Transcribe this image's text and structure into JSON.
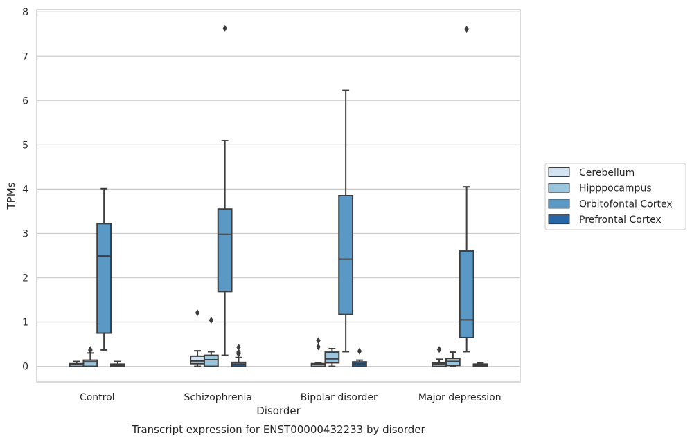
{
  "chart_data": {
    "type": "box",
    "title": "",
    "caption": "Transcript expression for ENST00000432233 by disorder",
    "xlabel": "Disorder",
    "ylabel": "TPMs",
    "ylim": [
      -0.35,
      8.05
    ],
    "yticks": [
      "0",
      "1",
      "2",
      "3",
      "4",
      "5",
      "6",
      "7",
      "8"
    ],
    "grid": "horizontal",
    "legend_position": "right",
    "categories": [
      "Control",
      "Schizophrenia",
      "Bipolar disorder",
      "Major depression"
    ],
    "series": [
      {
        "name": "Cerebellum",
        "color": "#d4e3f2",
        "boxes": [
          {
            "whislo": 0.0,
            "q1": 0.0,
            "med": 0.04,
            "q3": 0.06,
            "whishi": 0.11,
            "fliers": []
          },
          {
            "whislo": 0.0,
            "q1": 0.06,
            "med": 0.12,
            "q3": 0.23,
            "whishi": 0.35,
            "fliers": [
              1.21
            ]
          },
          {
            "whislo": 0.0,
            "q1": 0.0,
            "med": 0.04,
            "q3": 0.06,
            "whishi": 0.08,
            "fliers": [
              0.44,
              0.58
            ]
          },
          {
            "whislo": 0.0,
            "q1": 0.0,
            "med": 0.05,
            "q3": 0.08,
            "whishi": 0.16,
            "fliers": [
              0.38
            ]
          }
        ]
      },
      {
        "name": "Hipppocampus",
        "color": "#9ac5dc",
        "boxes": [
          {
            "whislo": 0.0,
            "q1": 0.0,
            "med": 0.1,
            "q3": 0.14,
            "whishi": 0.3,
            "fliers": [
              0.38,
              0.36
            ]
          },
          {
            "whislo": 0.0,
            "q1": 0.0,
            "med": 0.15,
            "q3": 0.25,
            "whishi": 0.33,
            "fliers": [
              1.04
            ]
          },
          {
            "whislo": 0.0,
            "q1": 0.08,
            "med": 0.17,
            "q3": 0.32,
            "whishi": 0.4,
            "fliers": []
          },
          {
            "whislo": 0.0,
            "q1": 0.02,
            "med": 0.11,
            "q3": 0.18,
            "whishi": 0.32,
            "fliers": []
          }
        ]
      },
      {
        "name": "Orbitofontal Cortex",
        "color": "#5a99c5",
        "boxes": [
          {
            "whislo": 0.37,
            "q1": 0.75,
            "med": 2.49,
            "q3": 3.22,
            "whishi": 4.01,
            "fliers": []
          },
          {
            "whislo": 0.25,
            "q1": 1.69,
            "med": 2.98,
            "q3": 3.55,
            "whishi": 5.1,
            "fliers": [
              7.63
            ]
          },
          {
            "whislo": 0.33,
            "q1": 1.17,
            "med": 2.42,
            "q3": 3.85,
            "whishi": 6.23,
            "fliers": []
          },
          {
            "whislo": 0.33,
            "q1": 0.65,
            "med": 1.05,
            "q3": 2.6,
            "whishi": 4.05,
            "fliers": [
              7.61
            ]
          }
        ]
      },
      {
        "name": "Prefrontal Cortex",
        "color": "#2966a6",
        "boxes": [
          {
            "whislo": 0.0,
            "q1": 0.0,
            "med": 0.03,
            "q3": 0.05,
            "whishi": 0.11,
            "fliers": []
          },
          {
            "whislo": 0.0,
            "q1": 0.0,
            "med": 0.04,
            "q3": 0.09,
            "whishi": 0.2,
            "fliers": [
              0.28,
              0.32,
              0.43
            ]
          },
          {
            "whislo": 0.0,
            "q1": 0.0,
            "med": 0.06,
            "q3": 0.1,
            "whishi": 0.14,
            "fliers": [
              0.34
            ]
          },
          {
            "whislo": 0.0,
            "q1": 0.0,
            "med": 0.03,
            "q3": 0.05,
            "whishi": 0.08,
            "fliers": []
          }
        ]
      }
    ]
  }
}
